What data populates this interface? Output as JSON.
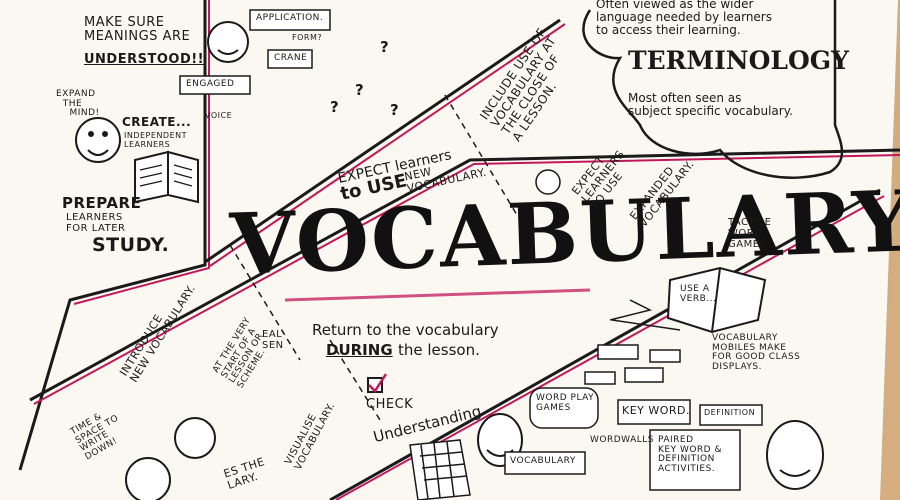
{
  "colors": {
    "paper": "#fbf8f2",
    "ink": "#1a1a1a",
    "accent": "#c2185b",
    "wood": "#d2a675"
  },
  "title": "VOCABULARY",
  "top_left": {
    "make_sure": "MAKE SURE\nMEANINGS ARE",
    "understood": "UNDERSTOOD!!",
    "expand": "EXPAND\n  THE\n    MIND!",
    "create": "CREATE...",
    "independent": "INDEPENDENT\nLEARNERS",
    "prepare": "PREPARE",
    "learners_for_later": "LEARNERS\nFOR LATER",
    "study": "STUDY."
  },
  "icons": {
    "application": "APPLICATION.",
    "form": "FORM?",
    "crane": "CRANE",
    "engaged": "ENGAGED",
    "voice": "VOICE"
  },
  "terminology": {
    "intro": "Often viewed as the wider\nlanguage needed by learners\nto access their learning.",
    "heading": "TERMINOLOGY",
    "body": "Most often seen as\nsubject specific vocabulary."
  },
  "band_top": {
    "include": "INCLUDE USE OF\nVOCABULARY AT\nTHE CLOSE OF\nA LESSON.",
    "expect_learners": "EXPECT learners",
    "expect_use": "to USE",
    "new_vocab": "NEW\nVocabulary.",
    "expect2": "EXPECT\nLEARNERS\nTO USE",
    "expanded": "EXPANDED\nVOCABULARY."
  },
  "band_mid": {
    "return": "Return to the vocabulary",
    "during": "DURING",
    "the_lesson": "the lesson.",
    "check": "CHECK",
    "understanding": "Understanding"
  },
  "bottom_left": {
    "introduce": "INTRODUCE\nNEW VOCABULARY.",
    "at_start": "AT THE VERY\nSTART OF A\nLESSON OR\nSCHEME.",
    "eal": "EAL\nSEN",
    "visualise": "VISUALISE\nVOCABULARY.",
    "time_space": "TIME &\nSPACE TO\nWRITE\nDOWN!",
    "es_the": "ES THE\nLARY."
  },
  "bottom_right": {
    "tactile": "TACTILE\nWORD\nGAMES",
    "use_a_verb": "USE A\nVERB...",
    "mobiles": "VOCABULARY\nMOBILES MAKE\nFOR GOOD CLASS\nDISPLAYS.",
    "word_play": "WORD PLAY\nGAMES",
    "key_word": "KEY WORD.",
    "definition": "DEFINITION",
    "wordwalls": "WORDWALLS",
    "vocabulary_label": "VOCABULARY",
    "paired": "PAIRED\nKEY WORD &\nDEFINITION\nACTIVITIES."
  }
}
